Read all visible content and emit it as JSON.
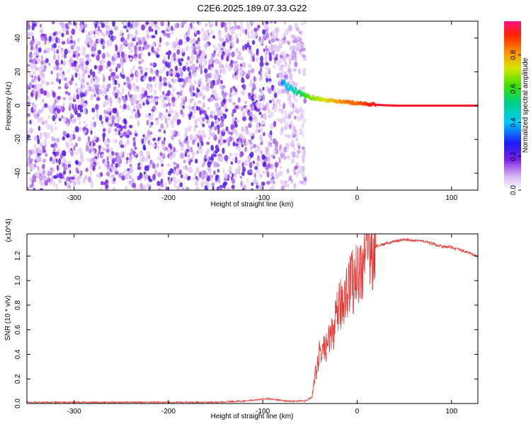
{
  "figure": {
    "title": "C2E6.2025.189.07.33.G22"
  },
  "chart_data": [
    {
      "type": "heatmap",
      "xlabel": "Height of straight line (km)",
      "ylabel": "Frequency (Hz)",
      "xlim": [
        -350,
        128
      ],
      "ylim": [
        -50,
        50
      ],
      "xticks": [
        -300,
        -200,
        -100,
        0,
        100
      ],
      "yticks": [
        -40,
        -20,
        0,
        20,
        40
      ],
      "colorbar": {
        "label": "Normalized spectral amplitude",
        "range": [
          0,
          1
        ],
        "ticks": [
          0.0,
          0.2,
          0.4,
          0.6,
          0.8
        ],
        "tick_labels": [
          "0.0",
          "0.2",
          "0.4",
          "0.6",
          "0.8"
        ]
      },
      "signal_trace": {
        "x": [
          -80,
          -70,
          -60,
          -50,
          -40,
          -30,
          -20,
          -10,
          0,
          10,
          20,
          40,
          60,
          80,
          100,
          128
        ],
        "freq": [
          14,
          10,
          7,
          5,
          4,
          3,
          2.5,
          2,
          1.5,
          1,
          0.5,
          0,
          0,
          0,
          0,
          0
        ],
        "amplitude": [
          0.35,
          0.45,
          0.55,
          0.65,
          0.7,
          0.75,
          0.8,
          0.85,
          0.85,
          0.9,
          0.95,
          0.95,
          0.95,
          0.95,
          0.95,
          0.95
        ]
      },
      "noise_region": {
        "x_range": [
          -350,
          -70
        ],
        "amplitude_range": [
          0.05,
          0.25
        ]
      }
    },
    {
      "type": "line",
      "xlabel": "Height of straight line (km)",
      "ylabel": "SNR (10 * v/v)",
      "y_scale_label": "(x10^4)",
      "xlim": [
        -350,
        128
      ],
      "ylim": [
        0,
        1.38
      ],
      "xticks": [
        -300,
        -200,
        -100,
        0,
        100
      ],
      "yticks": [
        0.0,
        0.2,
        0.4,
        0.6,
        0.8,
        1.0,
        1.2
      ],
      "ytick_labels": [
        "0.0",
        "0.2",
        "0.4",
        "0.6",
        "0.8",
        "1.0",
        "1.2"
      ],
      "color": "#e8322d",
      "series": [
        {
          "x": [
            -350,
            -300,
            -250,
            -200,
            -150,
            -120,
            -105,
            -95,
            -85,
            -75,
            -65,
            -55,
            -48,
            -44,
            -40,
            -35,
            -30,
            -25,
            -20,
            -15,
            -10,
            -5,
            0,
            5,
            10,
            15,
            20,
            30,
            40,
            50,
            60,
            70,
            80,
            90,
            100,
            110,
            120,
            128
          ],
          "y": [
            0.01,
            0.01,
            0.01,
            0.01,
            0.01,
            0.02,
            0.03,
            0.04,
            0.03,
            0.02,
            0.02,
            0.02,
            0.05,
            0.25,
            0.4,
            0.45,
            0.5,
            0.6,
            0.75,
            0.85,
            0.95,
            1.0,
            1.05,
            1.12,
            1.2,
            1.25,
            1.28,
            1.3,
            1.32,
            1.33,
            1.33,
            1.32,
            1.3,
            1.28,
            1.27,
            1.25,
            1.22,
            1.2
          ]
        }
      ]
    }
  ]
}
